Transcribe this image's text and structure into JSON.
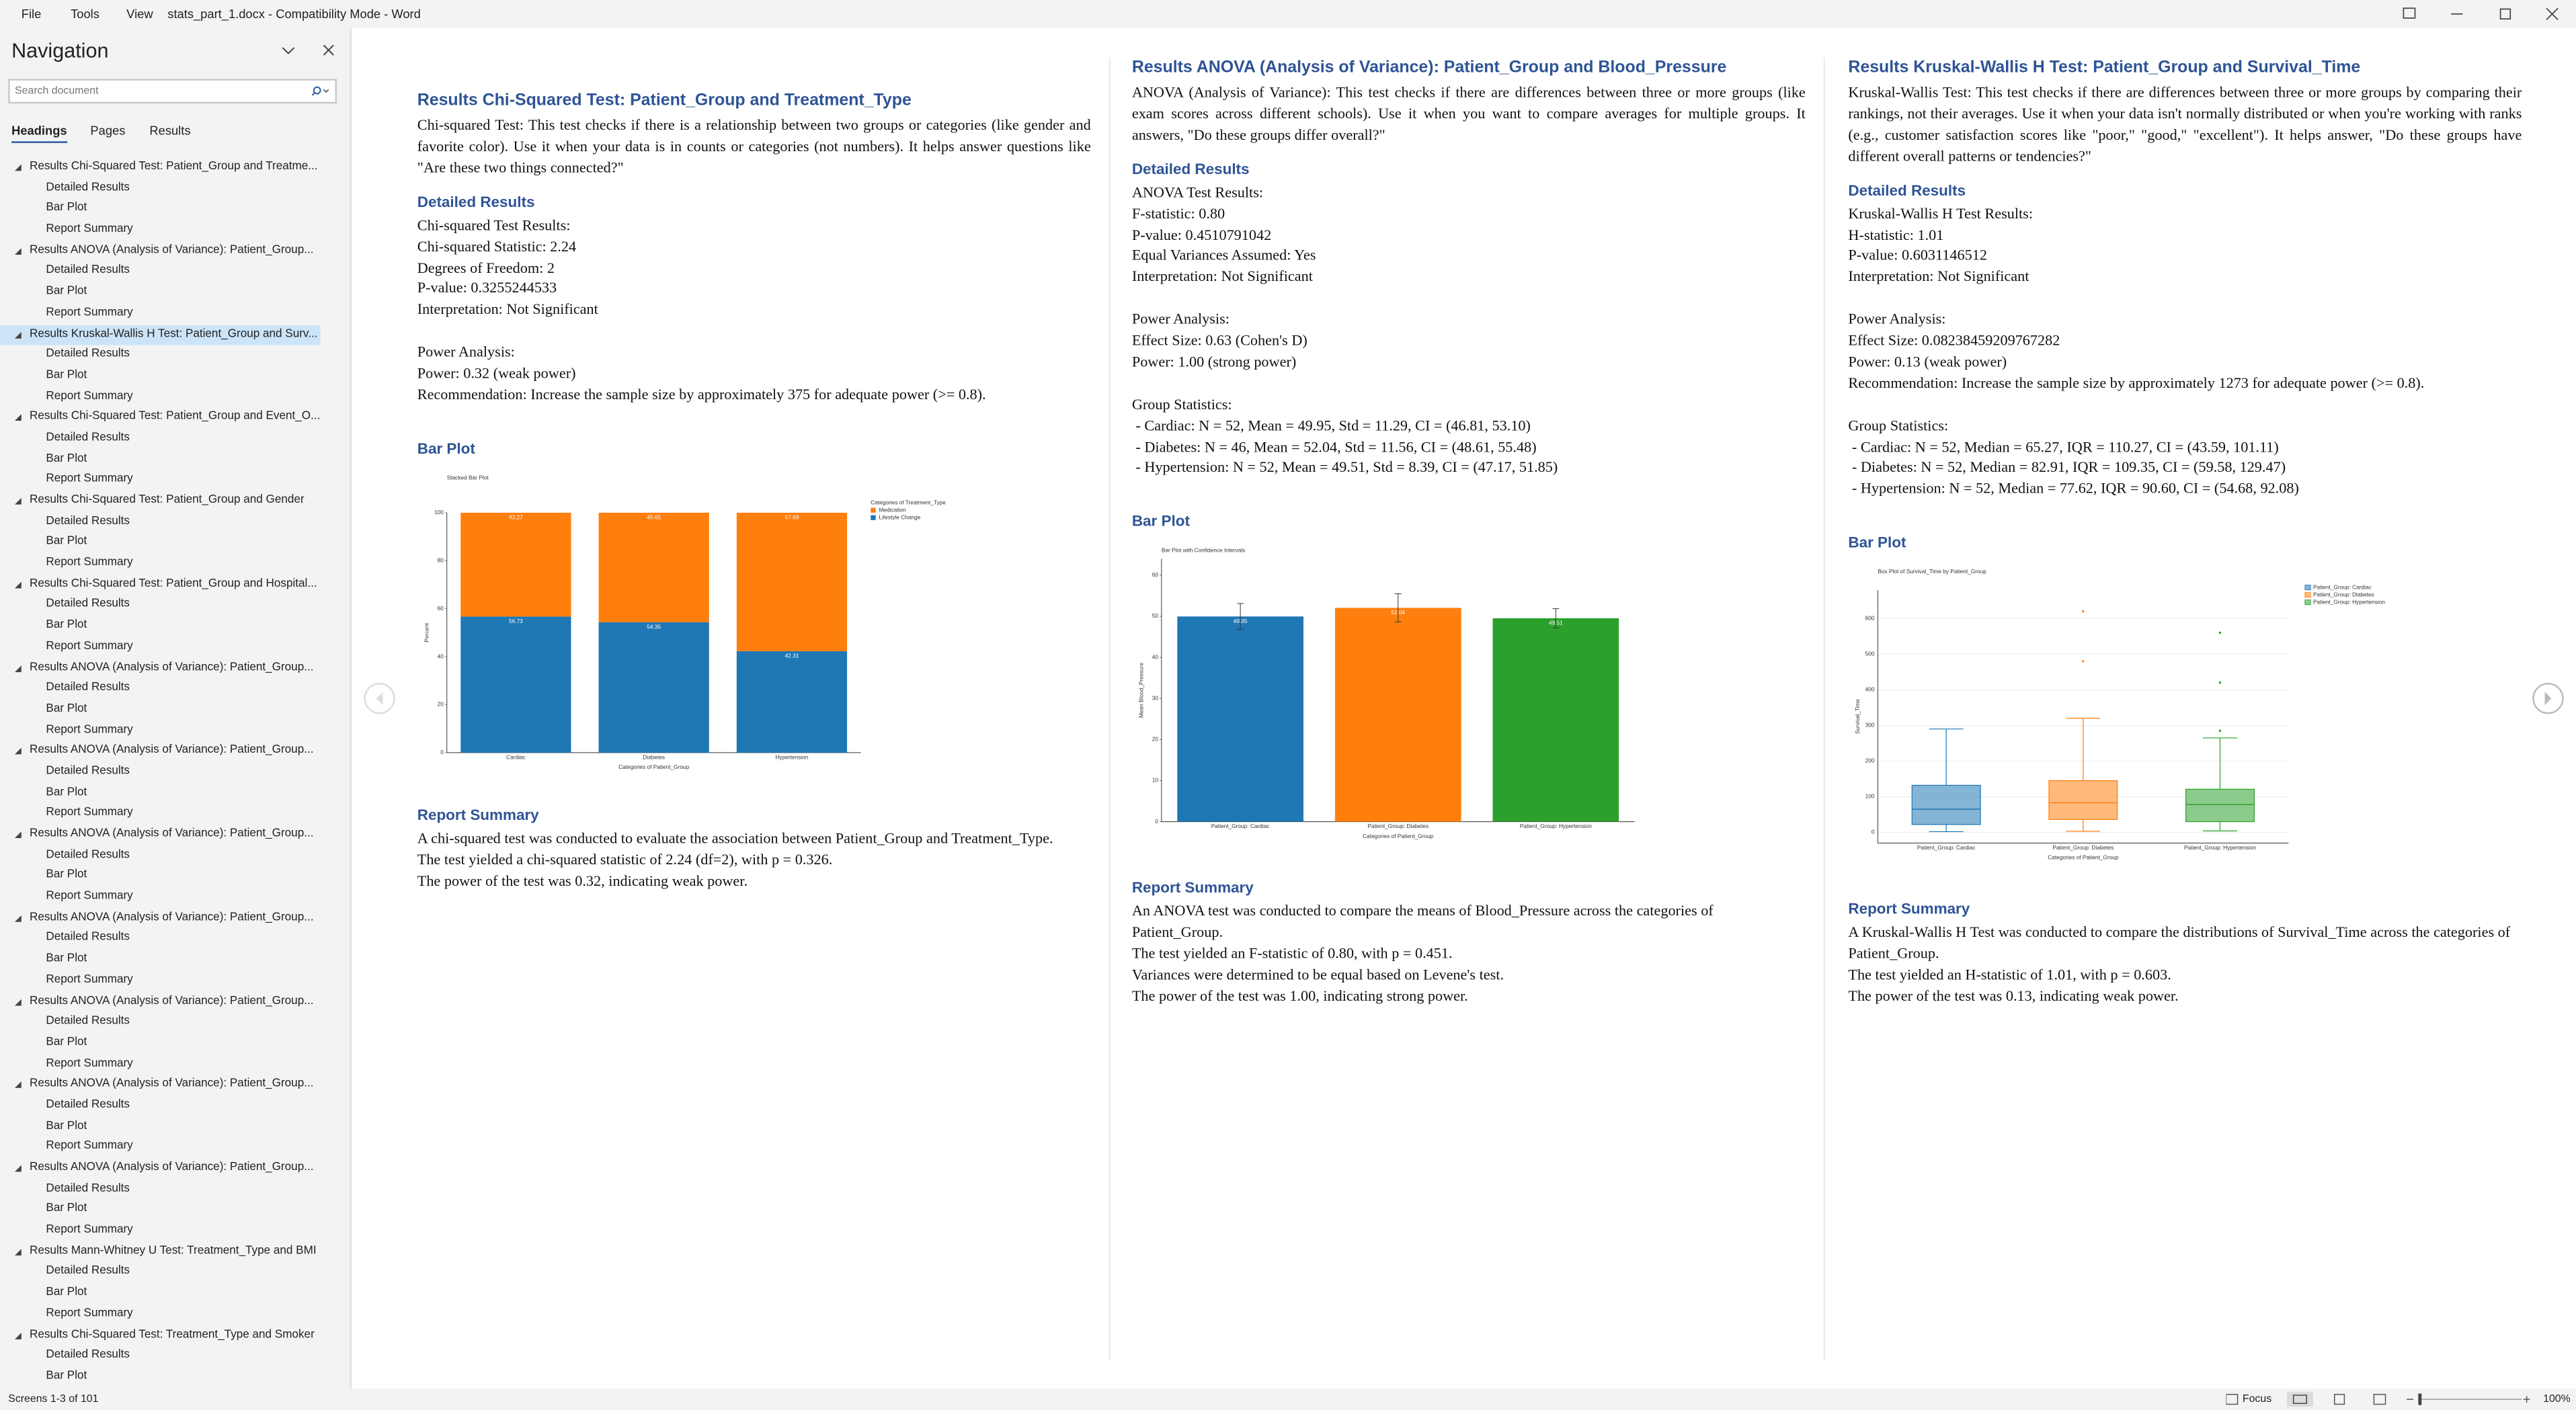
{
  "title_bar": {
    "menu": [
      "File",
      "Tools",
      "View"
    ],
    "document_title": "stats_part_1.docx  -  Compatibility Mode  -  Word"
  },
  "navigation": {
    "title": "Navigation",
    "search_placeholder": "Search document",
    "tabs": [
      "Headings",
      "Pages",
      "Results"
    ],
    "active_tab": 0,
    "selected_heading": 2,
    "headings": [
      {
        "label": "Results Chi-Squared Test: Patient_Group and Treatme...",
        "children": [
          "Detailed Results",
          "Bar Plot",
          "Report Summary"
        ]
      },
      {
        "label": "Results ANOVA (Analysis of Variance): Patient_Group...",
        "children": [
          "Detailed Results",
          "Bar Plot",
          "Report Summary"
        ]
      },
      {
        "label": "Results Kruskal-Wallis H Test: Patient_Group and Surv...",
        "children": [
          "Detailed Results",
          "Bar Plot",
          "Report Summary"
        ]
      },
      {
        "label": "Results Chi-Squared Test: Patient_Group and Event_O...",
        "children": [
          "Detailed Results",
          "Bar Plot",
          "Report Summary"
        ]
      },
      {
        "label": "Results Chi-Squared Test: Patient_Group and Gender",
        "children": [
          "Detailed Results",
          "Bar Plot",
          "Report Summary"
        ]
      },
      {
        "label": "Results Chi-Squared Test: Patient_Group and Hospital...",
        "children": [
          "Detailed Results",
          "Bar Plot",
          "Report Summary"
        ]
      },
      {
        "label": "Results ANOVA (Analysis of Variance): Patient_Group...",
        "children": [
          "Detailed Results",
          "Bar Plot",
          "Report Summary"
        ]
      },
      {
        "label": "Results ANOVA (Analysis of Variance): Patient_Group...",
        "children": [
          "Detailed Results",
          "Bar Plot",
          "Report Summary"
        ]
      },
      {
        "label": "Results ANOVA (Analysis of Variance): Patient_Group...",
        "children": [
          "Detailed Results",
          "Bar Plot",
          "Report Summary"
        ]
      },
      {
        "label": "Results ANOVA (Analysis of Variance): Patient_Group...",
        "children": [
          "Detailed Results",
          "Bar Plot",
          "Report Summary"
        ]
      },
      {
        "label": "Results ANOVA (Analysis of Variance): Patient_Group...",
        "children": [
          "Detailed Results",
          "Bar Plot",
          "Report Summary"
        ]
      },
      {
        "label": "Results ANOVA (Analysis of Variance): Patient_Group...",
        "children": [
          "Detailed Results",
          "Bar Plot",
          "Report Summary"
        ]
      },
      {
        "label": "Results ANOVA (Analysis of Variance): Patient_Group...",
        "children": [
          "Detailed Results",
          "Bar Plot",
          "Report Summary"
        ]
      },
      {
        "label": "Results Mann-Whitney U Test: Treatment_Type and BMI",
        "children": [
          "Detailed Results",
          "Bar Plot",
          "Report Summary"
        ]
      },
      {
        "label": "Results Chi-Squared Test: Treatment_Type and Smoker",
        "children": [
          "Detailed Results",
          "Bar Plot"
        ]
      }
    ]
  },
  "pages": [
    {
      "title": "Results Chi-Squared Test: Patient_Group and Treatment_Type",
      "intro": "Chi-squared Test: This test checks if there is a relationship between two groups or categories (like gender and favorite color). Use it when your data is in counts or categories (not numbers). It helps answer questions like \"Are these two things connected?\"",
      "detailed_heading": "Detailed Results",
      "results": [
        [
          "Chi-squared Test Results:",
          "Chi-squared Statistic: 2.24",
          "Degrees of Freedom: 2",
          "P-value: 0.3255244533",
          "Interpretation: Not Significant"
        ],
        [
          "Power Analysis:",
          "Power: 0.32 (weak power)",
          "Recommendation: Increase the sample size by approximately 375 for adequate power (>= 0.8)."
        ]
      ],
      "plot_heading": "Bar Plot",
      "figure": {
        "type": "stacked-bar",
        "title": "Stacked Bar Plot",
        "y_label": "Percent",
        "x_label": "Categories of Patient_Group",
        "legend_title": "Categories of Treatment_Type",
        "categories": [
          "Cardiac",
          "Diabetes",
          "Hypertension"
        ],
        "series": [
          {
            "name": "Lifestyle Change",
            "color": "#1f77b4",
            "values": [
              56.73,
              54.35,
              42.31
            ]
          },
          {
            "name": "Medication",
            "color": "#ff7f0e",
            "values": [
              43.27,
              45.65,
              57.69
            ]
          }
        ],
        "ylim": [
          0,
          100
        ],
        "yticks": [
          0,
          20,
          40,
          60,
          80,
          100
        ]
      },
      "summary_heading": "Report Summary",
      "summary": [
        "A chi-squared test was conducted to evaluate the association between Patient_Group and Treatment_Type.",
        "The test yielded a chi-squared statistic of 2.24 (df=2), with p = 0.326.",
        "The power of the test was 0.32, indicating weak power."
      ]
    },
    {
      "title": "Results ANOVA (Analysis of Variance): Patient_Group and Blood_Pressure",
      "intro": "ANOVA (Analysis of Variance): This test checks if there are differences between three or more groups (like exam scores across different schools). Use it when you want to compare averages for multiple groups. It answers, \"Do these groups differ overall?\"",
      "detailed_heading": "Detailed Results",
      "results": [
        [
          "ANOVA Test Results:",
          "F-statistic: 0.80",
          "P-value: 0.4510791042",
          "Equal Variances Assumed: Yes",
          "Interpretation: Not Significant"
        ],
        [
          "Power Analysis:",
          "Effect Size: 0.63 (Cohen's D)",
          "Power: 1.00 (strong power)"
        ],
        [
          "Group Statistics:",
          " - Cardiac: N = 52, Mean = 49.95, Std = 11.29, CI = (46.81, 53.10)",
          " - Diabetes: N = 46, Mean = 52.04, Std = 11.56, CI = (48.61, 55.48)",
          " - Hypertension: N = 52, Mean = 49.51, Std = 8.39, CI = (47.17, 51.85)"
        ]
      ],
      "plot_heading": "Bar Plot",
      "figure": {
        "type": "bar",
        "title": "Bar Plot with Confidence Intervals",
        "y_label": "Mean Blood_Pressure",
        "x_label": "Categories of Patient_Group",
        "categories": [
          "Patient_Group: Cardiac",
          "Patient_Group: Diabetes",
          "Patient_Group: Hypertension"
        ],
        "values": [
          49.95,
          52.04,
          49.51
        ],
        "errors": [
          3.15,
          3.44,
          2.34
        ],
        "colors": [
          "#1f77b4",
          "#ff7f0e",
          "#2ca02c"
        ],
        "ylim": [
          0,
          64
        ],
        "yticks": [
          0,
          10,
          20,
          30,
          40,
          50,
          60
        ]
      },
      "summary_heading": "Report Summary",
      "summary": [
        "An ANOVA test was conducted to compare the means of Blood_Pressure across the categories of Patient_Group.",
        "The test yielded an F-statistic of 0.80, with p = 0.451.",
        "Variances were determined to be equal based on Levene's test.",
        "The power of the test was 1.00, indicating strong power."
      ]
    },
    {
      "title": "Results Kruskal-Wallis H Test: Patient_Group and Survival_Time",
      "intro": "Kruskal-Wallis Test: This test checks if there are differences between three or more groups by comparing their rankings, not their averages. Use it when your data isn't normally distributed or when you're working with ranks (e.g., customer satisfaction scores like \"poor,\" \"good,\" \"excellent\"). It helps answer, \"Do these groups have different overall patterns or tendencies?\"",
      "detailed_heading": "Detailed Results",
      "results": [
        [
          "Kruskal-Wallis H Test Results:",
          "H-statistic: 1.01",
          "P-value: 0.6031146512",
          "Interpretation: Not Significant"
        ],
        [
          "Power Analysis:",
          "Effect Size: 0.08238459209767282",
          "Power: 0.13 (weak power)",
          "Recommendation: Increase the sample size by approximately 1273 for adequate power (>= 0.8)."
        ],
        [
          "Group Statistics:",
          " - Cardiac: N = 52, Median = 65.27, IQR = 110.27, CI = (43.59, 101.11)",
          " - Diabetes: N = 52, Median = 82.91, IQR = 109.35, CI = (59.58, 129.47)",
          " - Hypertension: N = 52, Median = 77.62, IQR = 90.60, CI = (54.68, 92.08)"
        ]
      ],
      "plot_heading": "Bar Plot",
      "figure": {
        "type": "box",
        "title": "Box Plot of Survival_Time by Patient_Group",
        "y_label": "Survival_Time",
        "x_label": "Categories of Patient_Group",
        "categories": [
          "Patient_Group: Cardiac",
          "Patient_Group: Diabetes",
          "Patient_Group: Hypertension"
        ],
        "series": [
          {
            "name": "Patient_Group: Cardiac",
            "color": "#1f77b4",
            "whisker_low": 2,
            "q1": 22,
            "median": 65,
            "q3": 132,
            "whisker_high": 290,
            "outliers": []
          },
          {
            "name": "Patient_Group: Diabetes",
            "color": "#ff7f0e",
            "whisker_low": 3,
            "q1": 36,
            "median": 83,
            "q3": 145,
            "whisker_high": 320,
            "outliers": [
              480,
              620
            ]
          },
          {
            "name": "Patient_Group: Hypertension",
            "color": "#2ca02c",
            "whisker_low": 4,
            "q1": 30,
            "median": 78,
            "q3": 121,
            "whisker_high": 265,
            "outliers": [
              285,
              420,
              560
            ]
          }
        ],
        "ylim": [
          -30,
          680
        ],
        "yticks": [
          0,
          100,
          200,
          300,
          400,
          500,
          600
        ]
      },
      "summary_heading": "Report Summary",
      "summary": [
        "A Kruskal-Wallis H Test was conducted to compare the distributions of Survival_Time across the categories of Patient_Group.",
        "The test yielded an H-statistic of 1.01, with p = 0.603.",
        "The power of the test was 0.13, indicating weak power."
      ]
    }
  ],
  "status_bar": {
    "screens": "Screens 1-3 of 101",
    "focus": "Focus",
    "zoom": "100%"
  }
}
